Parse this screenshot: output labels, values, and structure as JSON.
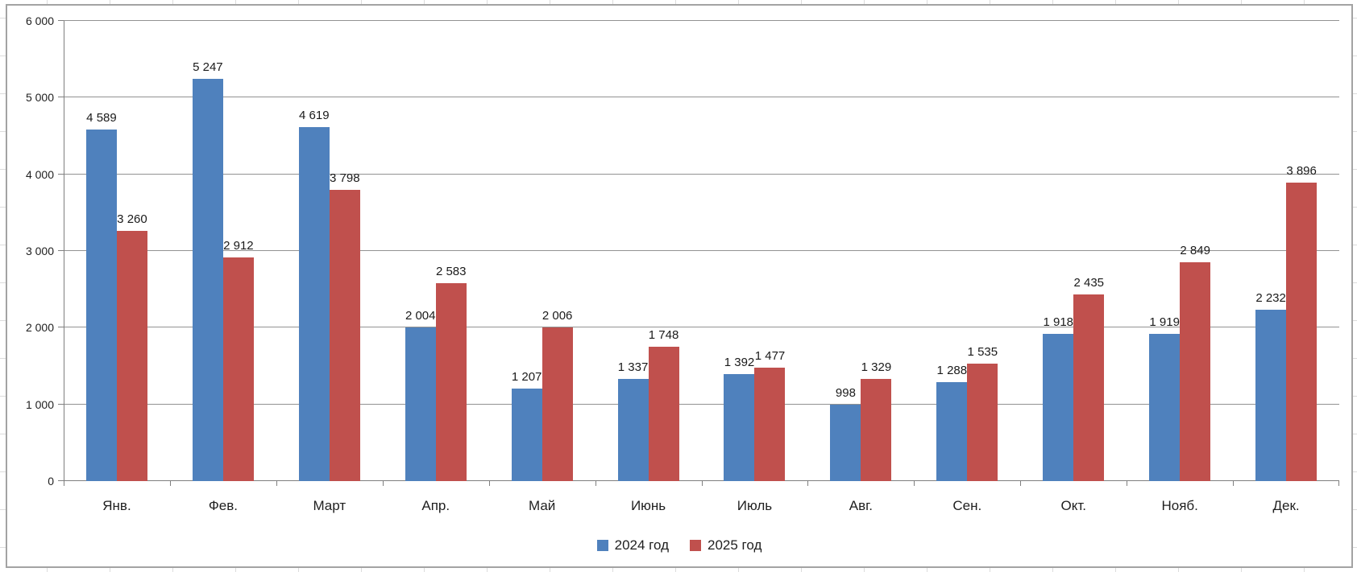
{
  "chart_data": {
    "type": "bar",
    "title": "",
    "categories": [
      "Янв.",
      "Фев.",
      "Март",
      "Апр.",
      "Май",
      "Июнь",
      "Июль",
      "Авг.",
      "Сен.",
      "Окт.",
      "Нояб.",
      "Дек."
    ],
    "series": [
      {
        "name": "2024 год",
        "color": "#4F81BD",
        "values": [
          4589,
          5247,
          4619,
          2004,
          1207,
          1337,
          1392,
          998,
          1288,
          1918,
          1919,
          2232
        ],
        "labels": [
          "4 589",
          "5 247",
          "4 619",
          "2 004",
          "1 207",
          "1 337",
          "1 392",
          "998",
          "1 288",
          "1 918",
          "1 919",
          "2 232"
        ]
      },
      {
        "name": "2025 год",
        "color": "#C0504D",
        "values": [
          3260,
          2912,
          3798,
          2583,
          2006,
          1748,
          1477,
          1329,
          1535,
          2435,
          2849,
          3896
        ],
        "labels": [
          "3 260",
          "2 912",
          "3 798",
          "2 583",
          "2 006",
          "1 748",
          "1 477",
          "1 329",
          "1 535",
          "2 435",
          "2 849",
          "3 896"
        ]
      }
    ],
    "ylim": [
      0,
      6000
    ],
    "y_tick_step": 1000,
    "y_tick_labels": [
      "0",
      "1 000",
      "2 000",
      "3 000",
      "4 000",
      "5 000",
      "6 000"
    ],
    "grid": true,
    "data_labels": true,
    "legend_position": "bottom"
  }
}
